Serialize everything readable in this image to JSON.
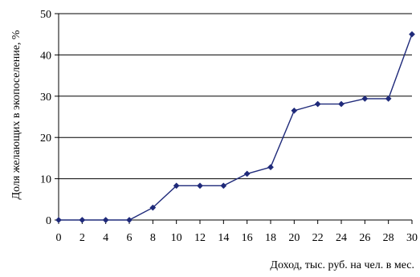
{
  "chart_data": {
    "type": "line",
    "title": "",
    "xlabel": "Доход, тыс. руб. на чел. в мес.",
    "ylabel": "Доля желающих в экопоселение, %",
    "xlim": [
      0,
      30
    ],
    "ylim": [
      0,
      50
    ],
    "x_ticks": [
      "0",
      "2",
      "4",
      "6",
      "8",
      "10",
      "12",
      "14",
      "16",
      "18",
      "20",
      "22",
      "24",
      "26",
      "28",
      "30"
    ],
    "y_ticks": [
      "0",
      "10",
      "20",
      "30",
      "40",
      "50"
    ],
    "grid": {
      "horizontal": true,
      "vertical": false
    },
    "line_color": "#1f2a7a",
    "marker": "diamond",
    "series": [
      {
        "x": [
          0,
          2,
          4,
          6,
          8,
          10,
          12,
          14,
          16,
          18,
          20,
          22,
          24,
          26,
          28,
          30
        ],
        "values": [
          0,
          0,
          0,
          0,
          3,
          8.3,
          8.3,
          8.3,
          11.2,
          12.8,
          26.5,
          28.1,
          28.1,
          29.4,
          29.4,
          45
        ]
      }
    ]
  }
}
